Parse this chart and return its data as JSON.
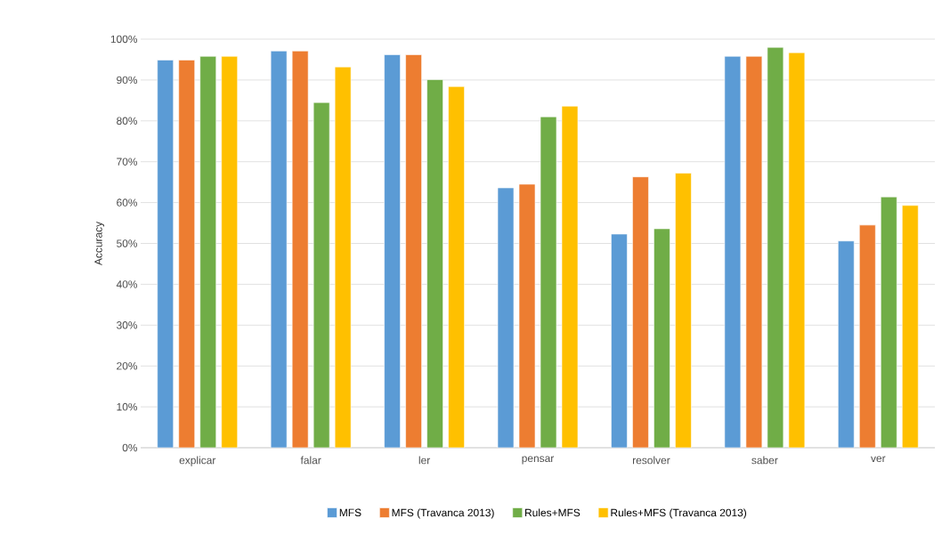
{
  "chart_data": {
    "type": "bar",
    "ylabel": "Accuracy",
    "categories": [
      "explicar",
      "falar",
      "ler",
      "pensar",
      "resolver",
      "saber",
      "ver"
    ],
    "series": [
      {
        "name": "MFS",
        "color": "#5b9bd5",
        "values": [
          94.9,
          97.1,
          96.2,
          63.6,
          52.3,
          95.8,
          50.6
        ]
      },
      {
        "name": "MFS (Travanca 2013)",
        "color": "#ed7d31",
        "values": [
          94.9,
          97.1,
          96.2,
          64.5,
          66.3,
          95.8,
          54.5
        ]
      },
      {
        "name": "Rules+MFS",
        "color": "#70ad47",
        "values": [
          95.8,
          84.5,
          90.1,
          81.0,
          53.6,
          98.0,
          61.4
        ]
      },
      {
        "name": "Rules+MFS (Travanca 2013)",
        "color": "#ffc000",
        "values": [
          95.8,
          93.2,
          88.4,
          83.6,
          67.2,
          96.7,
          59.3
        ]
      }
    ],
    "ylim": [
      0,
      100
    ],
    "yticks": [
      {
        "value": 0,
        "label": "0%"
      },
      {
        "value": 10,
        "label": "10%"
      },
      {
        "value": 20,
        "label": "20%"
      },
      {
        "value": 30,
        "label": "30%"
      },
      {
        "value": 40,
        "label": "40%"
      },
      {
        "value": 50,
        "label": "50%"
      },
      {
        "value": 60,
        "label": "60%"
      },
      {
        "value": 70,
        "label": "70%"
      },
      {
        "value": 80,
        "label": "80%"
      },
      {
        "value": 90,
        "label": "90%"
      },
      {
        "value": 100,
        "label": "100%"
      }
    ],
    "grid": "y",
    "legend": "bottom"
  }
}
